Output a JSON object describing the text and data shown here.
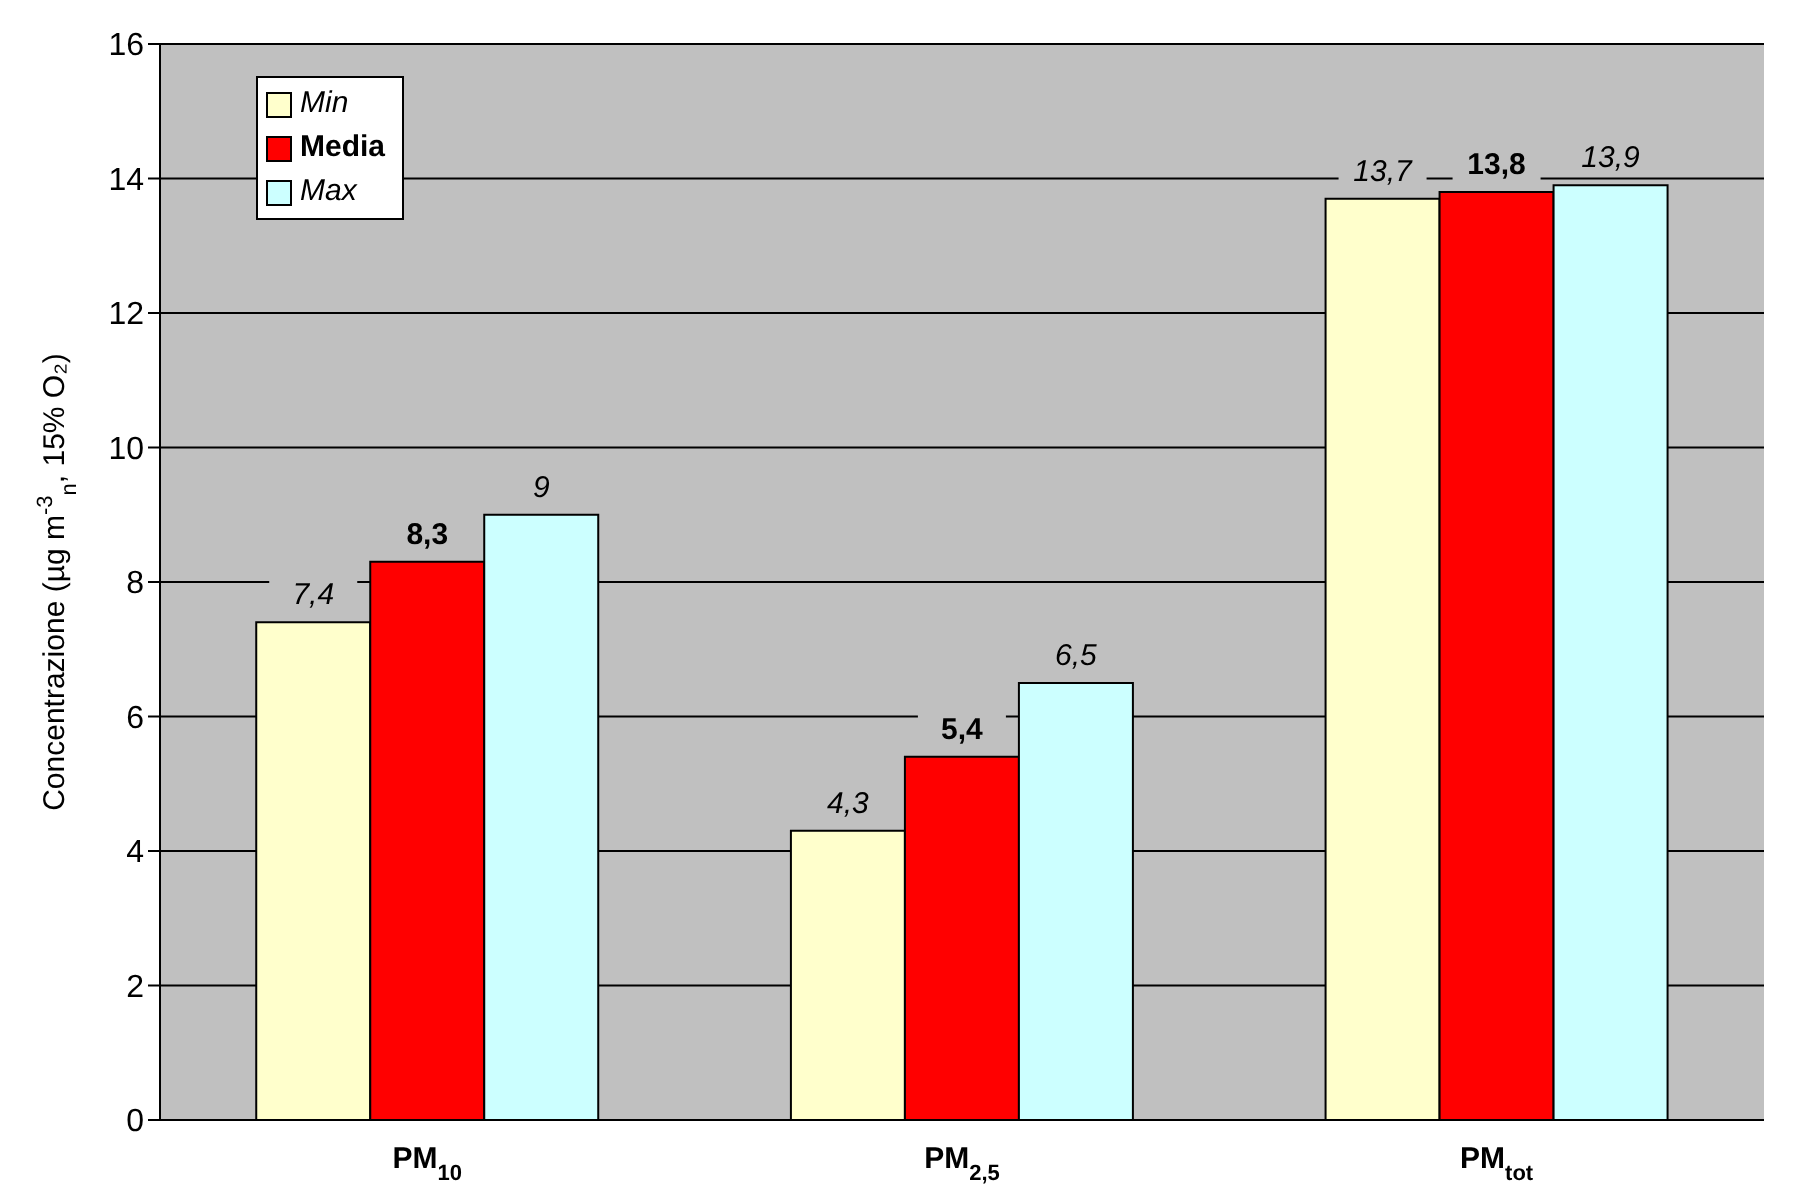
{
  "chart_data": {
    "type": "bar",
    "ylabel": "Concentrazione (µg m$^{-3}$$_{n}$, 15% O₂)",
    "categories": [
      "PM$_{10}$",
      "PM$_{2,5}$",
      "PM$_{tot}$"
    ],
    "series": [
      {
        "name": "Min",
        "color": "#ffffcc",
        "values": [
          7.4,
          4.3,
          13.7
        ],
        "value_labels": [
          "7,4",
          "4,3",
          "13,7"
        ]
      },
      {
        "name": "Media",
        "color": "#ff0000",
        "values": [
          8.3,
          5.4,
          13.8
        ],
        "value_labels": [
          "8,3",
          "5,4",
          "13,8"
        ]
      },
      {
        "name": "Max",
        "color": "#ccffff",
        "values": [
          9,
          6.5,
          13.9
        ],
        "value_labels": [
          "9",
          "6,5",
          "13,9"
        ]
      }
    ],
    "ylim": [
      0,
      16
    ],
    "yticks": [
      0,
      2,
      4,
      6,
      8,
      10,
      12,
      14,
      16
    ],
    "grid": "y",
    "legend": "top left"
  }
}
